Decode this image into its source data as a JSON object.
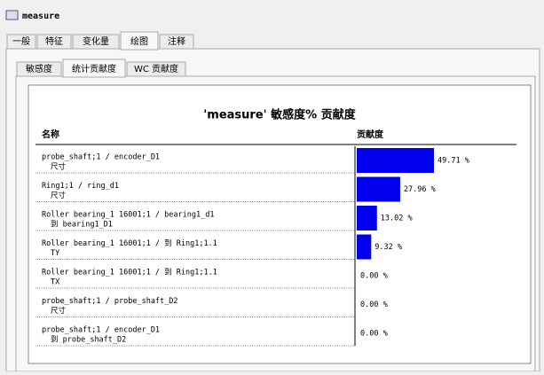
{
  "header": {
    "title": "measure"
  },
  "tabs": [
    "一般",
    "特征",
    "变化量",
    "绘图",
    "注释"
  ],
  "subtabs": [
    "敏感度",
    "统计贡献度",
    "WC 贡献度"
  ],
  "report": {
    "title": "'measure' 敏感度% 贡献度",
    "columns": [
      "名称",
      "贡献度"
    ],
    "rows": [
      {
        "name": "probe_shaft;1 / encoder_D1",
        "detail": "尺寸",
        "value": 49.71,
        "value_label": "49.71 %"
      },
      {
        "name": "Ring1;1 / ring_d1",
        "detail": "尺寸",
        "value": 27.96,
        "value_label": "27.96 %"
      },
      {
        "name": "Roller bearing_1 16001;1 / bearing1_d1",
        "detail": "到 bearing1_D1",
        "value": 13.02,
        "value_label": "13.02 %"
      },
      {
        "name": "Roller bearing_1 16001;1 / 到 Ring1;1.1",
        "detail": "TY",
        "value": 9.32,
        "value_label": "9.32 %"
      },
      {
        "name": "Roller bearing_1 16001;1 / 到 Ring1;1.1",
        "detail": "TX",
        "value": 0,
        "value_label": "0.00 %"
      },
      {
        "name": "probe_shaft;1 / probe_shaft_D2",
        "detail": "尺寸",
        "value": 0,
        "value_label": "0.00 %"
      },
      {
        "name": "probe_shaft;1 / encoder_D1",
        "detail": "到 probe_shaft_D2",
        "value": 0,
        "value_label": "0.00 %"
      }
    ]
  }
}
